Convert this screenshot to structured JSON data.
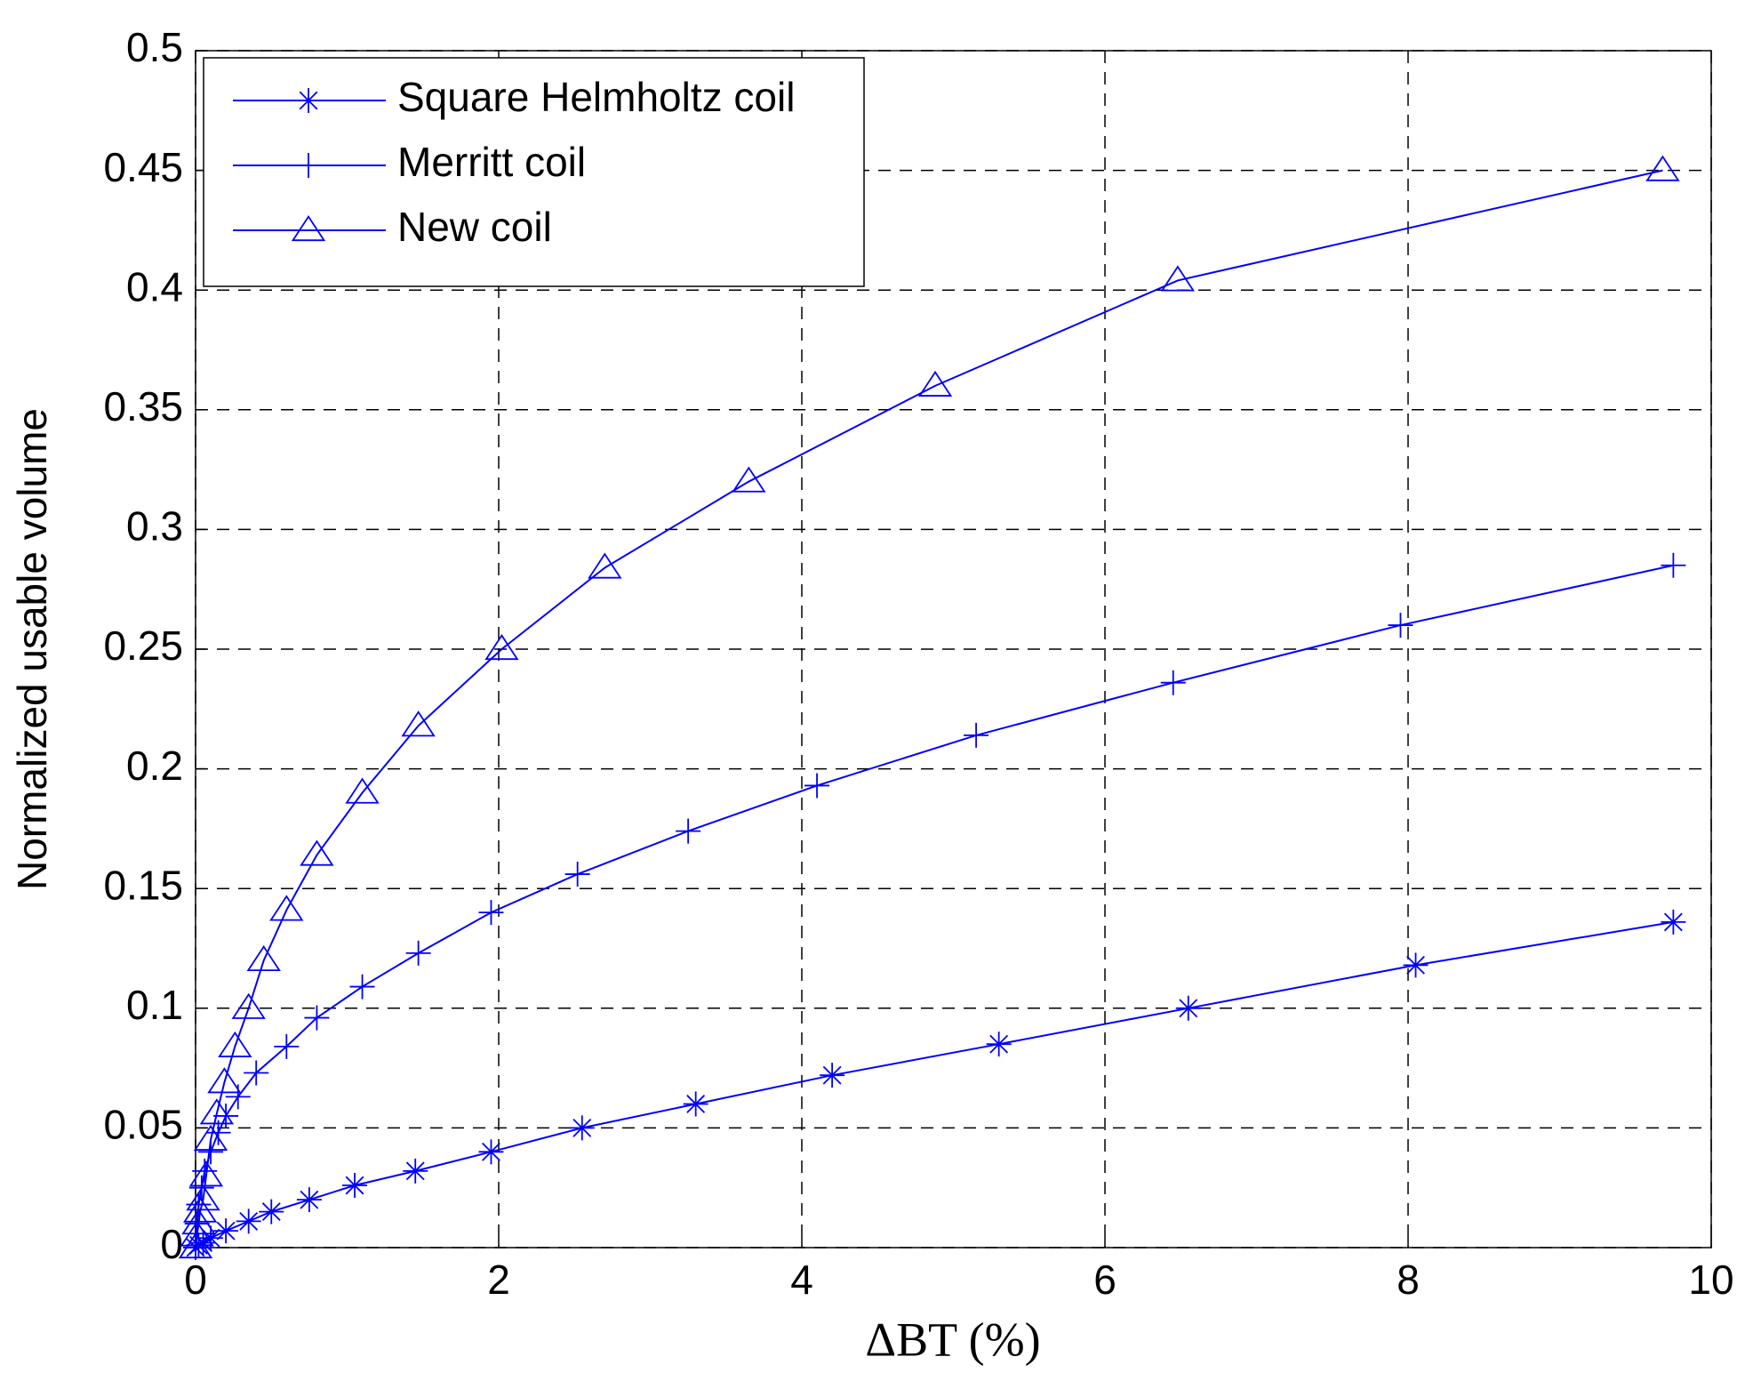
{
  "chart_data": {
    "type": "line",
    "xlabel": "ΔBT (%)",
    "ylabel": "Normalized usable volume",
    "xlim": [
      0,
      10
    ],
    "ylim": [
      0,
      0.5
    ],
    "xticks": [
      0,
      2,
      4,
      6,
      8,
      10
    ],
    "yticks": [
      0,
      0.05,
      0.1,
      0.15,
      0.2,
      0.25,
      0.3,
      0.35,
      0.4,
      0.45,
      0.5
    ],
    "grid": true,
    "legend": "upper left",
    "series": [
      {
        "name": "Square Helmholtz coil",
        "color": "#0000ff",
        "marker": "asterisk",
        "x": [
          0,
          0.02,
          0.05,
          0.1,
          0.2,
          0.35,
          0.5,
          0.75,
          1.05,
          1.45,
          1.95,
          2.55,
          3.3,
          4.2,
          5.3,
          6.55,
          8.05,
          9.75
        ],
        "values": [
          0,
          0.001,
          0.002,
          0.004,
          0.007,
          0.011,
          0.015,
          0.02,
          0.026,
          0.032,
          0.04,
          0.05,
          0.06,
          0.072,
          0.085,
          0.1,
          0.118,
          0.136
        ]
      },
      {
        "name": "Merritt coil",
        "color": "#0000ff",
        "marker": "plus",
        "x": [
          0,
          0.01,
          0.02,
          0.04,
          0.06,
          0.1,
          0.15,
          0.2,
          0.28,
          0.4,
          0.6,
          0.8,
          1.1,
          1.47,
          1.95,
          2.52,
          3.25,
          4.1,
          5.15,
          6.45,
          7.95,
          9.75
        ],
        "values": [
          0,
          0.01,
          0.018,
          0.025,
          0.032,
          0.04,
          0.048,
          0.055,
          0.063,
          0.073,
          0.084,
          0.096,
          0.109,
          0.123,
          0.14,
          0.156,
          0.174,
          0.193,
          0.214,
          0.236,
          0.26,
          0.285
        ]
      },
      {
        "name": "New coil",
        "color": "#0000ff",
        "marker": "triangle",
        "x": [
          0,
          0.01,
          0.02,
          0.03,
          0.05,
          0.07,
          0.1,
          0.14,
          0.19,
          0.26,
          0.35,
          0.45,
          0.6,
          0.8,
          1.1,
          1.47,
          2.02,
          2.7,
          3.65,
          4.88,
          6.48,
          9.68
        ],
        "values": [
          0,
          0.005,
          0.01,
          0.015,
          0.02,
          0.03,
          0.045,
          0.056,
          0.069,
          0.084,
          0.1,
          0.12,
          0.141,
          0.164,
          0.19,
          0.218,
          0.25,
          0.284,
          0.32,
          0.36,
          0.404,
          0.45
        ]
      }
    ]
  }
}
